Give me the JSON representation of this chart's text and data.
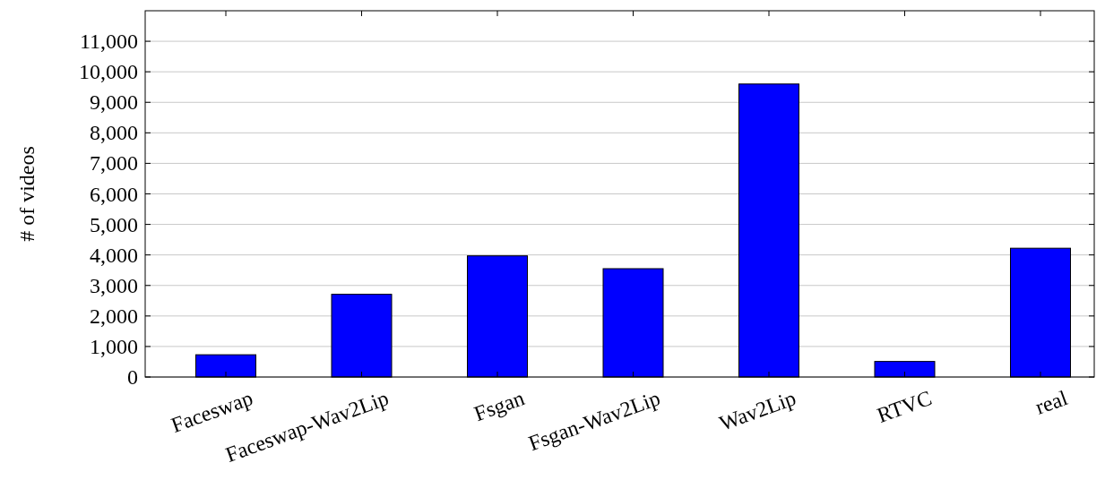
{
  "chart_data": {
    "type": "bar",
    "ylabel": "# of videos",
    "categories": [
      "Faceswap",
      "Faceswap-Wav2Lip",
      "Fsgan",
      "Fsgan-Wav2Lip",
      "Wav2Lip",
      "RTVC",
      "real"
    ],
    "values": [
      730,
      2710,
      3970,
      3550,
      9600,
      510,
      4220
    ],
    "color": "#0000ff",
    "ylim": [
      0,
      12000
    ],
    "yticks": [
      {
        "value": 0,
        "label": "0"
      },
      {
        "value": 1000,
        "label": "1,000"
      },
      {
        "value": 2000,
        "label": "2,000"
      },
      {
        "value": 3000,
        "label": "3,000"
      },
      {
        "value": 4000,
        "label": "4,000"
      },
      {
        "value": 5000,
        "label": "5,000"
      },
      {
        "value": 6000,
        "label": "6,000"
      },
      {
        "value": 7000,
        "label": "7,000"
      },
      {
        "value": 8000,
        "label": "8,000"
      },
      {
        "value": 9000,
        "label": "9,000"
      },
      {
        "value": 10000,
        "label": "10,000"
      },
      {
        "value": 11000,
        "label": "11,000"
      }
    ],
    "grid": "y"
  }
}
